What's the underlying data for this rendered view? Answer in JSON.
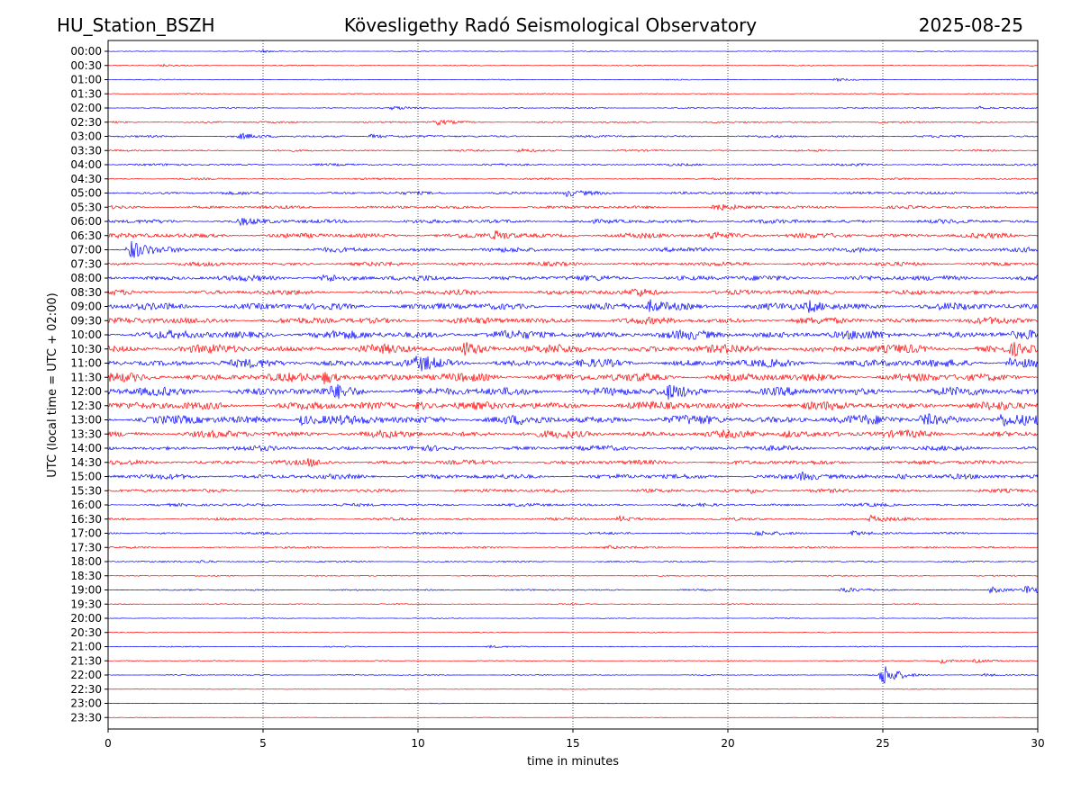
{
  "header": {
    "station": "HU_Station_BSZH",
    "observatory": "Kövesligethy Radó Seismological Observatory",
    "date": "2025-08-25"
  },
  "chart_data": {
    "type": "line",
    "title": "Kövesligethy Radó Seismological Observatory",
    "xlabel": "time in minutes",
    "ylabel": "UTC (local time = UTC + 02:00)",
    "xlim": [
      0,
      30
    ],
    "xticks": [
      "0",
      "5",
      "10",
      "15",
      "20",
      "25",
      "30"
    ],
    "row_labels": [
      "00:00",
      "00:30",
      "01:00",
      "01:30",
      "02:00",
      "02:30",
      "03:00",
      "03:30",
      "04:00",
      "04:30",
      "05:00",
      "05:30",
      "06:00",
      "06:30",
      "07:00",
      "07:30",
      "08:00",
      "08:30",
      "09:00",
      "09:30",
      "10:00",
      "10:30",
      "11:00",
      "11:30",
      "12:00",
      "12:30",
      "13:00",
      "13:30",
      "14:00",
      "14:30",
      "15:00",
      "15:30",
      "16:00",
      "16:30",
      "17:00",
      "17:30",
      "18:00",
      "18:30",
      "19:00",
      "19:30",
      "20:00",
      "20:30",
      "21:00",
      "21:30",
      "22:00",
      "22:30",
      "23:00",
      "23:30"
    ],
    "trace_colors": [
      "#0000ff",
      "#ff0000"
    ],
    "noise_level": [
      0.08,
      0.09,
      0.09,
      0.1,
      0.12,
      0.18,
      0.22,
      0.18,
      0.22,
      0.18,
      0.3,
      0.32,
      0.4,
      0.5,
      0.45,
      0.4,
      0.55,
      0.5,
      0.7,
      0.65,
      0.85,
      0.85,
      0.8,
      0.85,
      0.85,
      0.8,
      0.9,
      0.7,
      0.5,
      0.45,
      0.5,
      0.35,
      0.3,
      0.25,
      0.22,
      0.18,
      0.15,
      0.12,
      0.15,
      0.12,
      0.08,
      0.08,
      0.1,
      0.1,
      0.1,
      0.06,
      0.06,
      0.05
    ],
    "events": [
      {
        "row": 0,
        "minute": 5.0,
        "amplitude": 0.2
      },
      {
        "row": 1,
        "minute": 1.7,
        "amplitude": 0.25
      },
      {
        "row": 1,
        "minute": 29.8,
        "amplitude": 0.2
      },
      {
        "row": 2,
        "minute": 23.5,
        "amplitude": 0.2
      },
      {
        "row": 4,
        "minute": 9.2,
        "amplitude": 0.3
      },
      {
        "row": 4,
        "minute": 28.1,
        "amplitude": 0.35
      },
      {
        "row": 5,
        "minute": 10.6,
        "amplitude": 0.45
      },
      {
        "row": 6,
        "minute": 4.3,
        "amplitude": 0.4
      },
      {
        "row": 6,
        "minute": 8.5,
        "amplitude": 0.4
      },
      {
        "row": 7,
        "minute": 13.3,
        "amplitude": 0.3
      },
      {
        "row": 10,
        "minute": 14.8,
        "amplitude": 0.45
      },
      {
        "row": 11,
        "minute": 19.6,
        "amplitude": 0.45
      },
      {
        "row": 12,
        "minute": 4.3,
        "amplitude": 0.5
      },
      {
        "row": 13,
        "minute": 12.5,
        "amplitude": 0.75
      },
      {
        "row": 13,
        "minute": 19.5,
        "amplitude": 0.6
      },
      {
        "row": 14,
        "minute": 0.7,
        "amplitude": 1.8
      },
      {
        "row": 16,
        "minute": 7.0,
        "amplitude": 0.6
      },
      {
        "row": 17,
        "minute": 17.0,
        "amplitude": 0.6
      },
      {
        "row": 18,
        "minute": 17.5,
        "amplitude": 0.9
      },
      {
        "row": 18,
        "minute": 22.6,
        "amplitude": 0.9
      },
      {
        "row": 21,
        "minute": 11.5,
        "amplitude": 1.0
      },
      {
        "row": 21,
        "minute": 29.2,
        "amplitude": 0.9
      },
      {
        "row": 22,
        "minute": 10.0,
        "amplitude": 0.9
      },
      {
        "row": 22,
        "minute": 29.1,
        "amplitude": 0.9
      },
      {
        "row": 23,
        "minute": 7.0,
        "amplitude": 1.0
      },
      {
        "row": 24,
        "minute": 7.3,
        "amplitude": 0.8
      },
      {
        "row": 24,
        "minute": 18.0,
        "amplitude": 1.1
      },
      {
        "row": 25,
        "minute": 10.0,
        "amplitude": 0.8
      },
      {
        "row": 26,
        "minute": 6.2,
        "amplitude": 0.9
      },
      {
        "row": 26,
        "minute": 26.3,
        "amplitude": 1.1
      },
      {
        "row": 26,
        "minute": 28.8,
        "amplitude": 0.9
      },
      {
        "row": 27,
        "minute": 21.8,
        "amplitude": 0.7
      },
      {
        "row": 29,
        "minute": 6.5,
        "amplitude": 0.5
      },
      {
        "row": 30,
        "minute": 22.4,
        "amplitude": 0.5
      },
      {
        "row": 30,
        "minute": 25.5,
        "amplitude": 0.55
      },
      {
        "row": 31,
        "minute": 20.7,
        "amplitude": 0.4
      },
      {
        "row": 33,
        "minute": 16.5,
        "amplitude": 0.5
      },
      {
        "row": 33,
        "minute": 24.6,
        "amplitude": 0.6
      },
      {
        "row": 34,
        "minute": 20.9,
        "amplitude": 0.4
      },
      {
        "row": 34,
        "minute": 24.0,
        "amplitude": 0.4
      },
      {
        "row": 35,
        "minute": 16.1,
        "amplitude": 0.3
      },
      {
        "row": 36,
        "minute": 3.0,
        "amplitude": 0.3
      },
      {
        "row": 38,
        "minute": 23.7,
        "amplitude": 0.5
      },
      {
        "row": 38,
        "minute": 28.5,
        "amplitude": 0.6
      },
      {
        "row": 38,
        "minute": 29.6,
        "amplitude": 0.8
      },
      {
        "row": 42,
        "minute": 12.3,
        "amplitude": 0.2
      },
      {
        "row": 43,
        "minute": 26.9,
        "amplitude": 0.45
      },
      {
        "row": 43,
        "minute": 28.0,
        "amplitude": 0.3
      },
      {
        "row": 44,
        "minute": 25.0,
        "amplitude": 2.0
      },
      {
        "row": 44,
        "minute": 28.3,
        "amplitude": 0.3
      }
    ]
  }
}
